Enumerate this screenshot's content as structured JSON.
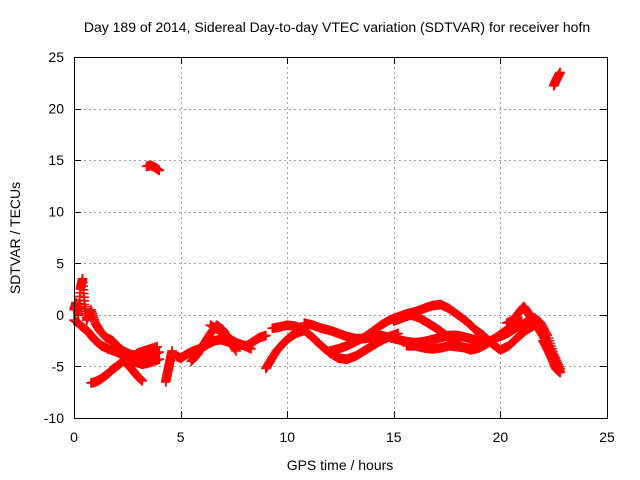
{
  "chart_data": {
    "type": "scatter",
    "title": "Day 189 of 2014, Sidereal Day-to-day VTEC variation (SDTVAR) for receiver hofn",
    "xlabel": "GPS time / hours",
    "ylabel": "SDTVAR / TECUs",
    "xlim": [
      0,
      25
    ],
    "ylim": [
      -10,
      25
    ],
    "xticks": [
      0,
      5,
      10,
      15,
      20,
      25
    ],
    "yticks": [
      -10,
      -5,
      0,
      5,
      10,
      15,
      20,
      25
    ],
    "xtick_labels": [
      "0",
      "5",
      "10",
      "15",
      "20",
      "25"
    ],
    "ytick_labels": [
      "-10",
      "-5",
      "0",
      "5",
      "10",
      "15",
      "20",
      "25"
    ],
    "grid": true,
    "marker": "plus",
    "color": "#ff0000",
    "series": [
      {
        "name": "s1",
        "x": [
          0.0,
          0.1,
          0.2,
          0.3,
          0.4,
          0.5,
          0.6,
          0.8,
          1.0,
          1.2,
          1.5,
          1.8,
          2.0,
          2.3,
          2.6,
          3.0,
          3.3,
          3.6,
          4.0
        ],
        "y": [
          0.5,
          1.2,
          0.0,
          2.5,
          3.5,
          1.0,
          -0.5,
          0.5,
          -0.8,
          -1.5,
          -2.2,
          -2.5,
          -3.0,
          -3.5,
          -3.8,
          -4.0,
          -4.2,
          -4.0,
          -3.6
        ]
      },
      {
        "name": "s2",
        "x": [
          0.0,
          0.2,
          0.4,
          0.6,
          0.8,
          1.0,
          1.3,
          1.6,
          2.0,
          2.4,
          2.8,
          3.2,
          3.6,
          4.0
        ],
        "y": [
          -0.5,
          -0.8,
          -1.2,
          -1.5,
          -2.0,
          -2.5,
          -3.0,
          -3.3,
          -3.6,
          -4.0,
          -4.5,
          -4.8,
          -4.6,
          -4.3
        ]
      },
      {
        "name": "s3",
        "x": [
          0.8,
          1.0,
          1.2,
          1.4,
          1.6
        ],
        "y": [
          -6.6,
          -6.5,
          -6.3,
          -6.0,
          -5.7
        ]
      },
      {
        "name": "s4",
        "x": [
          1.6,
          1.8,
          2.0,
          2.3,
          2.5,
          2.8,
          3.0,
          3.3,
          3.6,
          3.9
        ],
        "y": [
          -5.7,
          -5.3,
          -5.0,
          -4.5,
          -4.2,
          -4.0,
          -3.7,
          -3.5,
          -3.3,
          -3.1
        ]
      },
      {
        "name": "s5",
        "x": [
          2.4,
          2.6,
          2.8,
          3.0,
          3.2
        ],
        "y": [
          -4.6,
          -5.0,
          -5.5,
          -6.0,
          -6.4
        ]
      },
      {
        "name": "s6",
        "x": [
          3.4,
          3.6,
          3.8,
          4.0
        ],
        "y": [
          14.4,
          14.5,
          14.3,
          14.0
        ]
      },
      {
        "name": "s7",
        "x": [
          4.3,
          4.4,
          4.5,
          4.6
        ],
        "y": [
          -6.5,
          -5.5,
          -4.5,
          -3.5
        ]
      },
      {
        "name": "s8",
        "x": [
          4.8,
          5.0,
          5.3,
          5.6,
          6.0,
          6.3,
          6.6,
          6.9,
          7.2,
          7.5,
          7.8,
          8.1,
          8.4,
          8.7,
          9.0
        ],
        "y": [
          -4.0,
          -4.2,
          -3.8,
          -3.5,
          -3.2,
          -2.8,
          -2.5,
          -2.4,
          -2.6,
          -2.8,
          -2.9,
          -3.0,
          -2.6,
          -2.2,
          -2.0
        ]
      },
      {
        "name": "s9",
        "x": [
          5.5,
          5.8,
          6.1,
          6.4,
          6.7,
          7.0,
          7.3,
          7.6
        ],
        "y": [
          -4.5,
          -3.8,
          -2.8,
          -1.8,
          -1.0,
          -1.5,
          -2.5,
          -3.5
        ]
      },
      {
        "name": "s10",
        "x": [
          6.4,
          6.8,
          7.2,
          7.6,
          8.0,
          8.3
        ],
        "y": [
          -1.0,
          -1.5,
          -2.2,
          -2.7,
          -3.0,
          -3.3
        ]
      },
      {
        "name": "s11",
        "x": [
          9.0,
          9.2,
          9.5,
          9.8,
          10.1,
          10.4,
          10.8
        ],
        "y": [
          -5.2,
          -4.5,
          -3.5,
          -2.8,
          -2.2,
          -1.8,
          -1.5
        ]
      },
      {
        "name": "s12",
        "x": [
          9.3,
          9.6,
          10.0,
          10.4,
          10.8,
          11.2,
          11.6,
          12.0,
          12.4,
          12.8,
          13.2,
          13.6,
          14.0,
          14.4,
          14.8,
          15.2
        ],
        "y": [
          -1.3,
          -1.2,
          -1.0,
          -1.1,
          -1.5,
          -2.2,
          -3.0,
          -3.7,
          -4.2,
          -4.3,
          -4.0,
          -3.5,
          -3.0,
          -2.5,
          -2.1,
          -1.8
        ]
      },
      {
        "name": "s13",
        "x": [
          10.8,
          11.2,
          11.6,
          12.0,
          12.4,
          12.8,
          13.2,
          13.6,
          14.0,
          14.4,
          14.8,
          15.2,
          15.6,
          16.0,
          16.4,
          16.8,
          17.2,
          17.6,
          18.0,
          18.4,
          18.8,
          19.2
        ],
        "y": [
          -0.8,
          -1.0,
          -1.3,
          -1.5,
          -1.8,
          -2.1,
          -2.3,
          -2.3,
          -2.2,
          -2.0,
          -2.2,
          -2.4,
          -2.6,
          -2.7,
          -2.6,
          -2.4,
          -2.2,
          -2.0,
          -2.0,
          -2.2,
          -2.4,
          -2.7
        ]
      },
      {
        "name": "s14",
        "x": [
          12.0,
          12.4,
          12.8,
          13.2,
          13.6,
          14.0,
          14.4,
          14.8,
          15.2,
          15.6,
          16.0,
          16.4,
          16.8,
          17.2,
          17.6,
          18.0,
          18.4,
          18.8,
          19.2,
          19.6,
          20.0,
          20.4,
          20.8,
          21.2,
          21.6
        ],
        "y": [
          -3.5,
          -3.3,
          -3.0,
          -2.6,
          -2.2,
          -1.6,
          -1.0,
          -0.5,
          -0.2,
          0.1,
          0.3,
          0.6,
          0.9,
          1.0,
          0.6,
          0.0,
          -0.6,
          -1.4,
          -2.0,
          -2.8,
          -3.4,
          -3.0,
          -2.2,
          -1.5,
          -1.0
        ]
      },
      {
        "name": "s15",
        "x": [
          15.0,
          15.4,
          15.8,
          16.2,
          16.6,
          17.0,
          17.4,
          17.8,
          18.2,
          18.6,
          19.0,
          19.4,
          19.8,
          20.2,
          20.6,
          21.0
        ],
        "y": [
          -0.6,
          -0.3,
          0.0,
          -0.3,
          -0.8,
          -1.3,
          -1.9,
          -2.6,
          -3.1,
          -3.4,
          -3.2,
          -2.7,
          -2.2,
          -1.6,
          -1.0,
          -0.6
        ]
      },
      {
        "name": "s16",
        "x": [
          15.6,
          16.0,
          16.4,
          16.8,
          17.2,
          17.6,
          18.0,
          18.4,
          18.8
        ],
        "y": [
          -3.0,
          -3.0,
          -3.2,
          -3.3,
          -3.2,
          -3.0,
          -3.1,
          -3.2,
          -3.3
        ]
      },
      {
        "name": "s17",
        "x": [
          19.2,
          19.5,
          19.8,
          20.1,
          20.4,
          20.7,
          21.0,
          21.3,
          21.6,
          21.9,
          22.2,
          22.5,
          22.8
        ],
        "y": [
          -3.0,
          -2.6,
          -2.2,
          -2.0,
          -1.7,
          -1.3,
          -1.0,
          -0.6,
          -0.3,
          -0.8,
          -2.0,
          -3.8,
          -5.2
        ]
      },
      {
        "name": "s18",
        "x": [
          20.3,
          20.6,
          20.9,
          21.1,
          21.3,
          21.5,
          21.8,
          22.1,
          22.4,
          22.6,
          22.8
        ],
        "y": [
          -0.8,
          -0.5,
          0.3,
          0.8,
          0.2,
          -0.5,
          -1.4,
          -2.4,
          -3.6,
          -4.6,
          -5.5
        ]
      },
      {
        "name": "s19",
        "x": [
          22.0,
          22.2,
          22.4,
          22.6,
          22.8
        ],
        "y": [
          -2.5,
          -3.3,
          -4.2,
          -5.2,
          -5.6
        ]
      },
      {
        "name": "s20",
        "x": [
          22.5,
          22.6,
          22.7,
          22.8
        ],
        "y": [
          22.2,
          22.7,
          23.1,
          23.5
        ]
      }
    ]
  }
}
